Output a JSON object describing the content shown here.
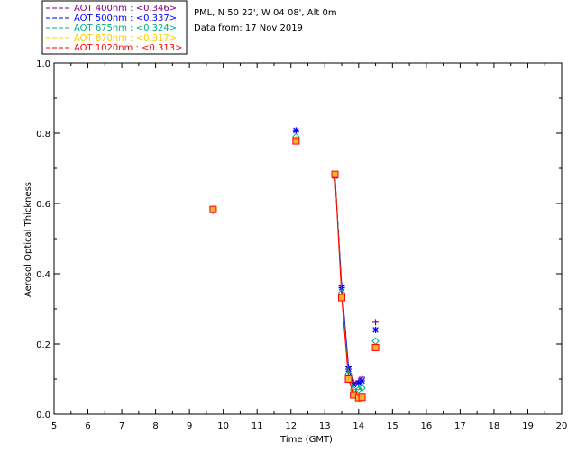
{
  "header": {
    "site": "PML, N 50 22', W 04 08', Alt 0m",
    "date": "Data from: 17 Nov 2019"
  },
  "chart_data": {
    "type": "line",
    "xlabel": "Time (GMT)",
    "ylabel": "Aerosol Optical Thickness",
    "xlim": [
      5,
      20
    ],
    "ylim": [
      0.0,
      1.0
    ],
    "xticks": [
      "5",
      "6",
      "7",
      "8",
      "9",
      "10",
      "11",
      "12",
      "13",
      "14",
      "15",
      "16",
      "17",
      "18",
      "19",
      "20"
    ],
    "yticks": [
      "0.0",
      "0.2",
      "0.4",
      "0.6",
      "0.8",
      "1.0"
    ],
    "legend_position": "top-left, above plot",
    "series": [
      {
        "name": "AOT  400nm : <0.346>",
        "color": "#800080",
        "marker": "plus",
        "x": [
          9.7,
          12.15,
          13.3,
          13.5,
          13.7,
          13.85,
          14.0,
          14.1,
          14.5
        ],
        "y": [
          0.58,
          0.805,
          0.68,
          0.365,
          0.135,
          0.09,
          0.095,
          0.105,
          0.262
        ]
      },
      {
        "name": "AOT  500nm : <0.337>",
        "color": "#0000ff",
        "marker": "asterisk",
        "x": [
          9.7,
          12.15,
          13.3,
          13.5,
          13.7,
          13.85,
          14.0,
          14.1,
          14.5
        ],
        "y": [
          0.58,
          0.808,
          0.678,
          0.36,
          0.128,
          0.085,
          0.088,
          0.095,
          0.24
        ]
      },
      {
        "name": "AOT  675nm : <0.324>",
        "color": "#00aa88",
        "marker": "diamond",
        "x": [
          9.7,
          12.15,
          13.3,
          13.5,
          13.7,
          13.85,
          14.0,
          14.1,
          14.5
        ],
        "y": [
          0.582,
          0.79,
          0.68,
          0.345,
          0.115,
          0.07,
          0.07,
          0.075,
          0.208
        ]
      },
      {
        "name": "AOT  870nm : <0.317>",
        "color": "#ffcc00",
        "marker": "triangle",
        "x": [
          9.7,
          12.15,
          13.3,
          13.5,
          13.7,
          13.85,
          14.0,
          14.1,
          14.5
        ],
        "y": [
          0.583,
          0.782,
          0.682,
          0.335,
          0.102,
          0.058,
          0.052,
          0.052,
          0.192
        ]
      },
      {
        "name": "AOT 1020nm : <0.313>",
        "color": "#ff0000",
        "marker": "square",
        "x": [
          9.7,
          12.15,
          13.3,
          13.5,
          13.7,
          13.85,
          14.0,
          14.1,
          14.5
        ],
        "y": [
          0.583,
          0.778,
          0.683,
          0.332,
          0.1,
          0.055,
          0.047,
          0.048,
          0.19
        ]
      }
    ]
  }
}
